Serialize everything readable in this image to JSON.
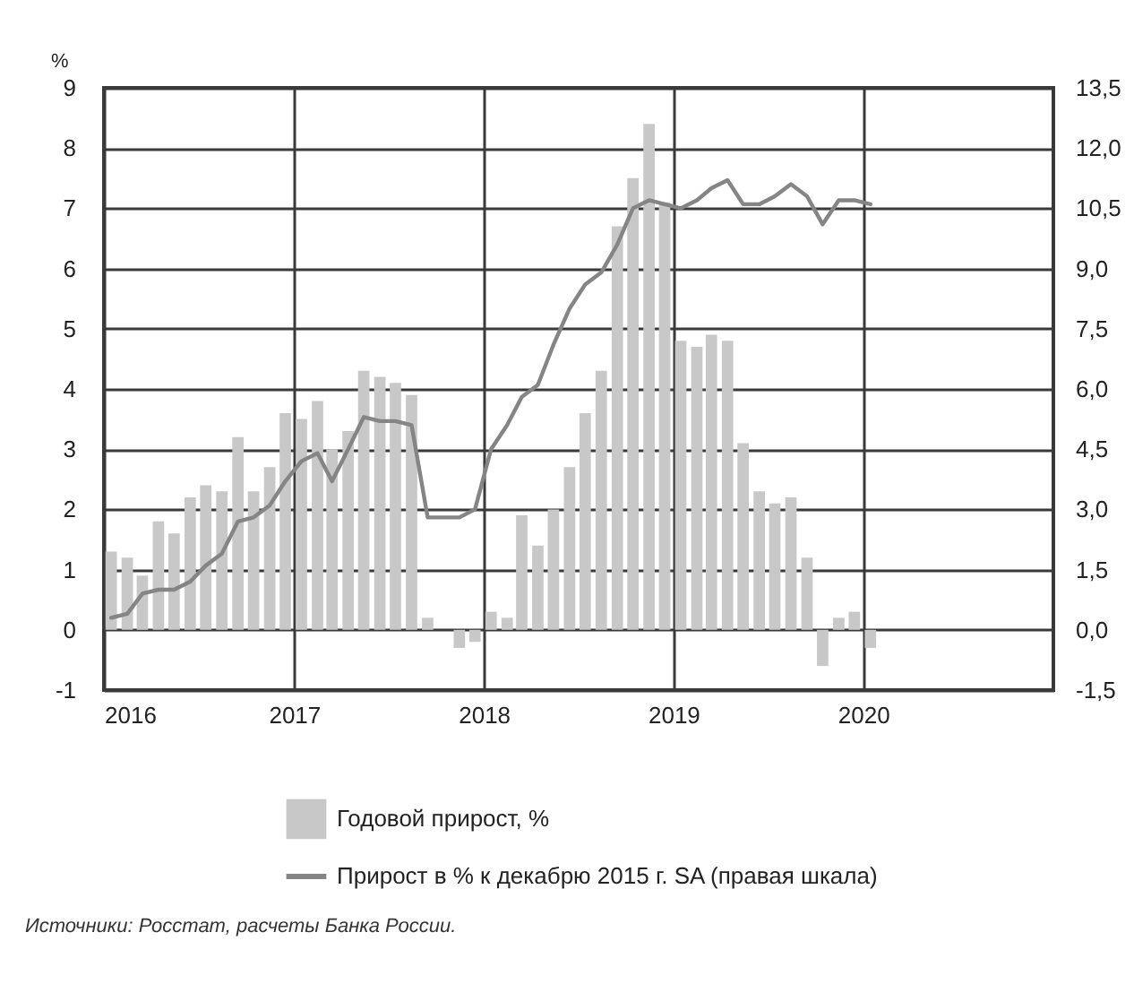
{
  "chart_data": {
    "type": "bar",
    "ylabel": "%",
    "x": [
      "2016-01-15",
      "2016-02-15",
      "2016-03-15",
      "2016-04-15",
      "2016-05-15",
      "2016-06-15",
      "2016-07-15",
      "2016-08-15",
      "2016-09-15",
      "2016-10-15",
      "2016-11-15",
      "2016-12-15",
      "2017-01-15",
      "2017-02-15",
      "2017-03-15",
      "2017-04-15",
      "2017-05-15",
      "2017-06-15",
      "2017-07-15",
      "2017-08-15",
      "2017-09-15",
      "2017-10-15",
      "2017-11-15",
      "2017-12-15",
      "2018-01-15",
      "2018-02-15",
      "2018-03-15",
      "2018-04-15",
      "2018-05-15",
      "2018-06-15",
      "2018-07-15",
      "2018-08-15",
      "2018-09-15",
      "2018-10-15",
      "2018-11-15",
      "2018-12-15",
      "2019-01-15",
      "2019-02-15",
      "2019-03-15",
      "2019-04-15",
      "2019-05-15",
      "2019-06-15",
      "2019-07-15",
      "2019-08-15",
      "2019-09-15",
      "2019-10-15",
      "2019-11-15",
      "2019-12-15",
      "2020-01-15"
    ],
    "series": [
      {
        "name": "Годовой прирост, %",
        "color": "#c8c8c8",
        "values": [
          1.3,
          1.2,
          0.9,
          1.8,
          1.6,
          2.2,
          2.4,
          2.3,
          3.2,
          2.3,
          2.7,
          3.6,
          3.5,
          3.8,
          3.0,
          3.3,
          4.3,
          4.2,
          4.1,
          3.9,
          0.2,
          0.0,
          -0.3,
          -0.2,
          0.3,
          0.2,
          1.9,
          1.4,
          2.0,
          2.7,
          3.6,
          4.3,
          6.7,
          7.5,
          8.4,
          7.1,
          4.8,
          4.7,
          4.9,
          4.8,
          3.1,
          2.3,
          2.1,
          2.2,
          1.2,
          -0.6,
          0.2,
          0.3,
          -0.3
        ]
      },
      {
        "name": "Прирост в % к декабрю 2015 г. SA (правая шкала)",
        "type": "line",
        "axis": "y2",
        "color": "#858585",
        "values": [
          0.3,
          0.4,
          0.9,
          1.0,
          1.0,
          1.2,
          1.6,
          1.9,
          2.7,
          2.8,
          3.1,
          3.7,
          4.2,
          4.4,
          3.7,
          4.5,
          5.3,
          5.2,
          5.2,
          5.1,
          2.8,
          2.8,
          2.8,
          3.0,
          4.5,
          5.1,
          5.8,
          6.1,
          7.1,
          8.0,
          8.6,
          8.9,
          9.6,
          10.5,
          10.7,
          10.6,
          10.5,
          10.7,
          11.0,
          11.2,
          10.6,
          10.6,
          10.8,
          11.1,
          10.8,
          10.1,
          10.7,
          10.7,
          10.6
        ]
      }
    ],
    "xlim": [
      "2016",
      "2021"
    ],
    "xticks": [
      "2016",
      "2017",
      "2018",
      "2019",
      "2020"
    ],
    "ylim": [
      -1,
      9
    ],
    "yticks": [
      -1,
      0,
      1,
      2,
      3,
      4,
      5,
      6,
      7,
      8,
      9
    ],
    "y2lim": [
      -1.5,
      13.5
    ],
    "y2ticks": [
      {
        "value": -1.5,
        "label": "-1,5"
      },
      {
        "value": 0,
        "label": "0,0"
      },
      {
        "value": 1.5,
        "label": "1,5"
      },
      {
        "value": 3,
        "label": "3,0"
      },
      {
        "value": 4.5,
        "label": "4,5"
      },
      {
        "value": 6,
        "label": "6,0"
      },
      {
        "value": 7.5,
        "label": "7,5"
      },
      {
        "value": 9,
        "label": "9,0"
      },
      {
        "value": 10.5,
        "label": "10,5"
      },
      {
        "value": 12,
        "label": "12,0"
      },
      {
        "value": 13.5,
        "label": "13,5"
      }
    ],
    "grid": true,
    "legend": "bottom",
    "line_style": "solid",
    "annotations": [
      "Источники: Росстат, расчеты Банка России."
    ]
  }
}
